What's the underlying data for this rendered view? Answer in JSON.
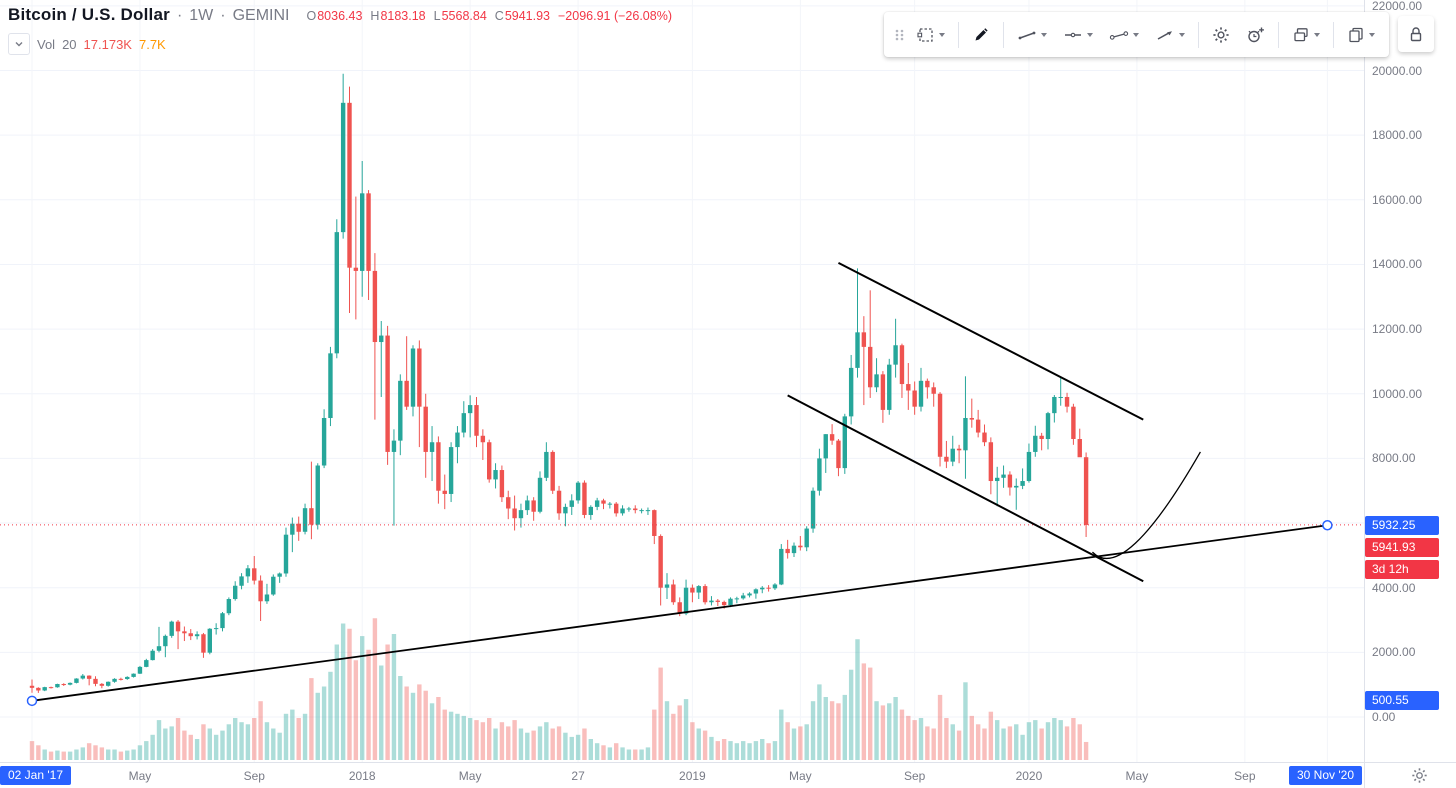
{
  "header": {
    "symbol": "Bitcoin / U.S. Dollar",
    "sep1": "·",
    "interval": "1W",
    "sep2": "·",
    "exchange": "GEMINI",
    "o_label": "O",
    "o": "8036.43",
    "h_label": "H",
    "h": "8183.18",
    "l_label": "L",
    "l": "5568.84",
    "c_label": "C",
    "c": "5941.93",
    "change": "−2096.91 (−26.08%)",
    "vol_label": "Vol",
    "vol_length": "20",
    "vol_value": "17.173K",
    "vol_ma": "7.7K"
  },
  "toolbar": {
    "items": [
      "drag-handle",
      "selection-tool",
      "brush-tool",
      "trend-line-tool",
      "horizontal-line-tool",
      "ray-line-tool",
      "arrow-line-tool",
      "settings",
      "add-alert",
      "layers",
      "duplicate",
      "lock"
    ]
  },
  "colors": {
    "up": "#26a69a",
    "down": "#ef5350",
    "vol_up": "rgba(38,166,154,0.38)",
    "vol_down": "rgba(239,83,80,0.38)",
    "accent_blue": "#2962ff",
    "last_price_red": "#f23645",
    "grid_h": "#f0f3fa",
    "grid_v": "#f3f5f9",
    "drawing": "#000000"
  },
  "price_axis": {
    "ticks": [
      {
        "label": "22000.00",
        "price": 22000
      },
      {
        "label": "20000.00",
        "price": 20000
      },
      {
        "label": "18000.00",
        "price": 18000
      },
      {
        "label": "16000.00",
        "price": 16000
      },
      {
        "label": "14000.00",
        "price": 14000
      },
      {
        "label": "12000.00",
        "price": 12000
      },
      {
        "label": "10000.00",
        "price": 10000
      },
      {
        "label": "8000.00",
        "price": 8000
      },
      {
        "label": "6000.00",
        "price": 6000
      },
      {
        "label": "4000.00",
        "price": 4000
      },
      {
        "label": "2000.00",
        "price": 2000
      },
      {
        "label": "0.00",
        "price": 0
      }
    ],
    "labels": [
      {
        "name": "trendline-end-price-label",
        "text": "5932.25",
        "bg": "#2962ff",
        "price": 5932.25
      },
      {
        "name": "last-price-label",
        "text": "5941.93",
        "bg": "#f23645",
        "price": 5941.93
      },
      {
        "name": "bar-close-countdown-label",
        "text": "3d 12h",
        "bg": "#f23645"
      },
      {
        "name": "trendline-start-price-label",
        "text": "500.55",
        "bg": "#2962ff",
        "price": 500.55
      }
    ]
  },
  "time_axis": {
    "ticks": [
      {
        "label": "02 Jan '17",
        "week": 0,
        "badge": true
      },
      {
        "label": "May",
        "week": 17
      },
      {
        "label": "Sep",
        "week": 35
      },
      {
        "label": "2018",
        "week": 52
      },
      {
        "label": "May",
        "week": 69
      },
      {
        "label": "27",
        "week": 86
      },
      {
        "label": "2019",
        "week": 104
      },
      {
        "label": "May",
        "week": 121
      },
      {
        "label": "Sep",
        "week": 139
      },
      {
        "label": "2020",
        "week": 157
      },
      {
        "label": "May",
        "week": 174
      },
      {
        "label": "Sep",
        "week": 191
      },
      {
        "label": "30 Nov '20",
        "week": 204,
        "badge": true
      }
    ]
  },
  "chart_data": {
    "type": "candlestick",
    "title": "Bitcoin / U.S. Dollar",
    "interval": "1W",
    "exchange": "GEMINI",
    "x_axis": {
      "start_label": "02 Jan '17",
      "end_label": "30 Nov '20",
      "unit": "week"
    },
    "y_axis": {
      "min": 0,
      "max": 22000,
      "tick_step": 2000
    },
    "last_price": 5941.93,
    "volume_unit": "K",
    "candles_format": [
      "open",
      "high",
      "low",
      "close",
      "volumeK"
    ],
    "candles": [
      [
        966,
        1162,
        750,
        902,
        18
      ],
      [
        902,
        920,
        745,
        820,
        14
      ],
      [
        820,
        935,
        800,
        924,
        10
      ],
      [
        924,
        940,
        880,
        920,
        8
      ],
      [
        920,
        1030,
        905,
        1020,
        9
      ],
      [
        1020,
        1045,
        960,
        1000,
        8
      ],
      [
        1000,
        1070,
        980,
        1055,
        8
      ],
      [
        1055,
        1200,
        1040,
        1190,
        10
      ],
      [
        1190,
        1330,
        1160,
        1280,
        12
      ],
      [
        1280,
        1290,
        980,
        1180,
        16
      ],
      [
        1180,
        1260,
        950,
        1025,
        14
      ],
      [
        1025,
        1050,
        890,
        965,
        12
      ],
      [
        965,
        1100,
        940,
        1090,
        10
      ],
      [
        1090,
        1200,
        1060,
        1180,
        10
      ],
      [
        1180,
        1215,
        1130,
        1175,
        8
      ],
      [
        1175,
        1260,
        1150,
        1240,
        9
      ],
      [
        1240,
        1350,
        1220,
        1340,
        10
      ],
      [
        1340,
        1580,
        1330,
        1550,
        14
      ],
      [
        1550,
        1800,
        1540,
        1760,
        18
      ],
      [
        1760,
        2100,
        1750,
        2050,
        24
      ],
      [
        2050,
        2790,
        2000,
        2190,
        38
      ],
      [
        2190,
        2550,
        1850,
        2510,
        30
      ],
      [
        2510,
        2980,
        2450,
        2950,
        32
      ],
      [
        2950,
        3000,
        2100,
        2650,
        40
      ],
      [
        2650,
        2800,
        2350,
        2590,
        28
      ],
      [
        2590,
        2720,
        2380,
        2500,
        24
      ],
      [
        2500,
        2650,
        2400,
        2560,
        20
      ],
      [
        2560,
        2600,
        1830,
        1990,
        34
      ],
      [
        1990,
        2750,
        1940,
        2730,
        30
      ],
      [
        2730,
        2900,
        2550,
        2750,
        24
      ],
      [
        2750,
        3250,
        2650,
        3210,
        28
      ],
      [
        3210,
        3700,
        3150,
        3650,
        34
      ],
      [
        3650,
        4200,
        3600,
        4060,
        40
      ],
      [
        4060,
        4450,
        3950,
        4350,
        36
      ],
      [
        4350,
        4700,
        4150,
        4600,
        34
      ],
      [
        4600,
        4980,
        4100,
        4220,
        40
      ],
      [
        4220,
        4380,
        2970,
        3580,
        56
      ],
      [
        3580,
        4120,
        3500,
        3790,
        36
      ],
      [
        3790,
        4410,
        3750,
        4340,
        30
      ],
      [
        4340,
        4470,
        4150,
        4440,
        26
      ],
      [
        4440,
        5860,
        4340,
        5640,
        44
      ],
      [
        5640,
        6170,
        5100,
        5980,
        48
      ],
      [
        5980,
        6200,
        5450,
        5730,
        40
      ],
      [
        5730,
        6600,
        5650,
        6460,
        44
      ],
      [
        6460,
        7900,
        5500,
        5950,
        78
      ],
      [
        5950,
        7850,
        5800,
        7780,
        64
      ],
      [
        7780,
        9520,
        7700,
        9250,
        70
      ],
      [
        9250,
        11450,
        9000,
        11250,
        84
      ],
      [
        11250,
        15400,
        11100,
        15000,
        110
      ],
      [
        15000,
        19900,
        14800,
        19000,
        130
      ],
      [
        19000,
        19500,
        12500,
        13900,
        125
      ],
      [
        13900,
        16100,
        12300,
        13800,
        95
      ],
      [
        13800,
        17200,
        13000,
        16200,
        118
      ],
      [
        16200,
        16300,
        12900,
        13800,
        105
      ],
      [
        13800,
        14350,
        9200,
        11600,
        135
      ],
      [
        11600,
        12250,
        9900,
        11800,
        90
      ],
      [
        11800,
        12100,
        7800,
        8200,
        110
      ],
      [
        8200,
        8900,
        5920,
        8550,
        120
      ],
      [
        8550,
        10600,
        8100,
        10400,
        80
      ],
      [
        10400,
        11780,
        9500,
        9600,
        70
      ],
      [
        9600,
        11500,
        9300,
        11400,
        64
      ],
      [
        11400,
        11650,
        8350,
        9600,
        72
      ],
      [
        9600,
        10000,
        7400,
        8200,
        66
      ],
      [
        8200,
        9000,
        7300,
        8500,
        54
      ],
      [
        8500,
        8680,
        6600,
        7000,
        60
      ],
      [
        7000,
        7500,
        6430,
        6900,
        48
      ],
      [
        6900,
        8500,
        6650,
        8350,
        46
      ],
      [
        8350,
        9000,
        7850,
        8800,
        44
      ],
      [
        8800,
        9770,
        8650,
        9400,
        42
      ],
      [
        9400,
        9950,
        8650,
        9650,
        40
      ],
      [
        9650,
        9900,
        8350,
        8700,
        38
      ],
      [
        8700,
        8900,
        7950,
        8500,
        36
      ],
      [
        8500,
        8580,
        7250,
        7350,
        40
      ],
      [
        7350,
        7850,
        7070,
        7640,
        30
      ],
      [
        7640,
        7780,
        6650,
        6800,
        36
      ],
      [
        6800,
        7000,
        6120,
        6450,
        32
      ],
      [
        6450,
        6850,
        5770,
        6150,
        38
      ],
      [
        6150,
        6600,
        5860,
        6400,
        30
      ],
      [
        6400,
        6850,
        6250,
        6700,
        26
      ],
      [
        6700,
        6800,
        6070,
        6350,
        28
      ],
      [
        6350,
        7600,
        6300,
        7400,
        32
      ],
      [
        7400,
        8500,
        7300,
        8200,
        36
      ],
      [
        8200,
        8250,
        6900,
        7000,
        30
      ],
      [
        7000,
        7150,
        6100,
        6300,
        32
      ],
      [
        6300,
        6600,
        5900,
        6500,
        26
      ],
      [
        6500,
        6890,
        6250,
        6700,
        22
      ],
      [
        6700,
        7300,
        6600,
        7250,
        24
      ],
      [
        7250,
        7320,
        6150,
        6250,
        30
      ],
      [
        6250,
        6550,
        6100,
        6500,
        20
      ],
      [
        6500,
        6780,
        6400,
        6700,
        16
      ],
      [
        6700,
        6750,
        6430,
        6600,
        14
      ],
      [
        6600,
        6650,
        6450,
        6600,
        12
      ],
      [
        6600,
        6650,
        6200,
        6300,
        16
      ],
      [
        6300,
        6550,
        6230,
        6450,
        12
      ],
      [
        6450,
        6500,
        6350,
        6450,
        10
      ],
      [
        6450,
        6550,
        6300,
        6400,
        10
      ],
      [
        6400,
        6450,
        6300,
        6400,
        10
      ],
      [
        6400,
        6480,
        6250,
        6400,
        12
      ],
      [
        6400,
        6420,
        5350,
        5600,
        48
      ],
      [
        5600,
        5650,
        3450,
        4000,
        88
      ],
      [
        4000,
        4450,
        3650,
        4100,
        56
      ],
      [
        4100,
        4250,
        3470,
        3550,
        44
      ],
      [
        3550,
        3700,
        3120,
        3200,
        52
      ],
      [
        3200,
        4250,
        3150,
        4000,
        58
      ],
      [
        4000,
        4100,
        3550,
        3850,
        36
      ],
      [
        3850,
        4080,
        3650,
        4050,
        30
      ],
      [
        4050,
        4110,
        3480,
        3550,
        28
      ],
      [
        3550,
        3740,
        3450,
        3600,
        22
      ],
      [
        3600,
        3650,
        3430,
        3560,
        18
      ],
      [
        3560,
        3600,
        3350,
        3460,
        20
      ],
      [
        3460,
        3700,
        3400,
        3660,
        18
      ],
      [
        3660,
        3720,
        3520,
        3670,
        16
      ],
      [
        3670,
        3840,
        3630,
        3760,
        18
      ],
      [
        3760,
        3860,
        3700,
        3820,
        16
      ],
      [
        3820,
        3980,
        3660,
        3950,
        18
      ],
      [
        3950,
        4050,
        3830,
        4000,
        20
      ],
      [
        4000,
        4080,
        3880,
        3980,
        16
      ],
      [
        3980,
        4140,
        3930,
        4100,
        18
      ],
      [
        4100,
        5350,
        4080,
        5200,
        48
      ],
      [
        5200,
        5480,
        4900,
        5070,
        36
      ],
      [
        5070,
        5400,
        4950,
        5300,
        30
      ],
      [
        5300,
        5600,
        5150,
        5250,
        32
      ],
      [
        5250,
        5900,
        5130,
        5830,
        34
      ],
      [
        5830,
        7100,
        5700,
        7000,
        56
      ],
      [
        7000,
        8300,
        6850,
        8000,
        72
      ],
      [
        8000,
        8750,
        7550,
        8750,
        60
      ],
      [
        8750,
        9060,
        8420,
        8550,
        56
      ],
      [
        8550,
        8600,
        7450,
        7700,
        54
      ],
      [
        7700,
        9380,
        7520,
        9300,
        62
      ],
      [
        9300,
        11200,
        9050,
        10800,
        86
      ],
      [
        10800,
        13880,
        10500,
        11900,
        115
      ],
      [
        11900,
        12400,
        9650,
        11450,
        92
      ],
      [
        11450,
        13200,
        9870,
        10200,
        88
      ],
      [
        10200,
        11100,
        10050,
        10600,
        56
      ],
      [
        10600,
        10700,
        9100,
        9500,
        52
      ],
      [
        9500,
        11080,
        9350,
        10900,
        54
      ],
      [
        10900,
        12320,
        10500,
        11500,
        60
      ],
      [
        11500,
        11550,
        9870,
        10300,
        48
      ],
      [
        10300,
        10950,
        9500,
        10100,
        42
      ],
      [
        10100,
        10380,
        9350,
        9600,
        38
      ],
      [
        9600,
        10800,
        9450,
        10400,
        40
      ],
      [
        10400,
        10470,
        9850,
        10200,
        32
      ],
      [
        10200,
        10350,
        9600,
        10000,
        30
      ],
      [
        10000,
        10050,
        7750,
        8050,
        62
      ],
      [
        8050,
        8540,
        7700,
        7900,
        40
      ],
      [
        7900,
        8700,
        7760,
        8300,
        34
      ],
      [
        8300,
        8420,
        7850,
        8250,
        28
      ],
      [
        8250,
        10540,
        7370,
        9250,
        74
      ],
      [
        9250,
        9850,
        8950,
        9200,
        42
      ],
      [
        9200,
        9500,
        8650,
        8800,
        34
      ],
      [
        8800,
        9050,
        8380,
        8500,
        30
      ],
      [
        8500,
        8650,
        6890,
        7300,
        46
      ],
      [
        7300,
        7740,
        6520,
        7400,
        38
      ],
      [
        7400,
        7780,
        7090,
        7500,
        30
      ],
      [
        7500,
        7600,
        6850,
        7100,
        32
      ],
      [
        7100,
        7380,
        6410,
        7150,
        34
      ],
      [
        7150,
        7690,
        7050,
        7300,
        24
      ],
      [
        7300,
        8460,
        7250,
        8200,
        36
      ],
      [
        8200,
        9010,
        8050,
        8700,
        38
      ],
      [
        8700,
        8790,
        8250,
        8600,
        30
      ],
      [
        8600,
        9440,
        8280,
        9400,
        36
      ],
      [
        9400,
        9960,
        9110,
        9900,
        40
      ],
      [
        9900,
        10500,
        9630,
        9900,
        38
      ],
      [
        9900,
        10030,
        9420,
        9600,
        32
      ],
      [
        9600,
        9690,
        8420,
        8600,
        40
      ],
      [
        8600,
        8920,
        8410,
        8036,
        34
      ],
      [
        8036.43,
        8183.18,
        5568.84,
        5941.93,
        17.173
      ]
    ],
    "drawings": {
      "trendline": {
        "from": {
          "week": 0,
          "price": 500.55
        },
        "to": {
          "week": 204,
          "price": 5932.25
        },
        "selected": true
      },
      "channel_upper": {
        "from": {
          "week": 127,
          "price": 14050
        },
        "to": {
          "week": 175,
          "price": 9200
        }
      },
      "channel_lower": {
        "from": {
          "week": 119,
          "price": 9950
        },
        "to": {
          "week": 175,
          "price": 4200
        }
      },
      "curve": {
        "points": [
          [
            167,
            5100
          ],
          [
            172,
            4100
          ],
          [
            184,
            8200
          ]
        ]
      }
    }
  }
}
